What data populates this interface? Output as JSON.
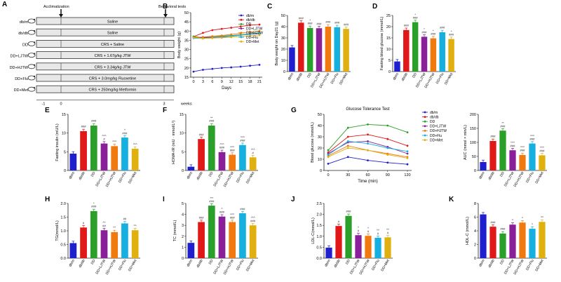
{
  "panel_letters": [
    "A",
    "B",
    "C",
    "D",
    "E",
    "F",
    "G",
    "H",
    "I",
    "J",
    "K"
  ],
  "group_colors": {
    "db/m": "#1f1fd0",
    "db/db": "#e01818",
    "DD": "#2aa02a",
    "DD+LJTW": "#8a1f9a",
    "DD+HJTW": "#f07a10",
    "DD+Flu": "#15b0e0",
    "DD+Met": "#e0b010"
  },
  "panel_a": {
    "timeline_top_labels": [
      "Acclimatization",
      "Behavioral tests"
    ],
    "rows": [
      {
        "group": "db/m",
        "treatment": "Saline"
      },
      {
        "group": "db/db",
        "treatment": "Saline"
      },
      {
        "group": "DD",
        "treatment": "CRS + Saline"
      },
      {
        "group": "DD+LJTW",
        "treatment": "CRS + 1.67g/kg JTW"
      },
      {
        "group": "DD+HJTW",
        "treatment": "CRS + 3.34g/kg JTW"
      },
      {
        "group": "DD+Flu",
        "treatment": "CRS + 3.0mg/kg Fluoxetine"
      },
      {
        "group": "DD+Met",
        "treatment": "CRS + 250mg/kg Metformin"
      }
    ],
    "axis_ticks": [
      "-1",
      "0",
      "3"
    ],
    "axis_unit": "weeks"
  },
  "chart_data": [
    {
      "panel": "B",
      "type": "line",
      "title": "",
      "xlabel": "Days",
      "ylabel": "Body weight (g)",
      "x": [
        0,
        3,
        6,
        9,
        12,
        15,
        18,
        21
      ],
      "xticks": [
        "0",
        "3",
        "6",
        "9",
        "12",
        "15",
        "18",
        "21"
      ],
      "ylim": [
        15,
        50
      ],
      "yticks": [
        "15",
        "20",
        "25",
        "30",
        "35",
        "40",
        "45",
        "50"
      ],
      "series": [
        {
          "name": "db/m",
          "values": [
            18,
            19,
            19.5,
            20,
            20.3,
            20.7,
            21.2,
            21.7
          ]
        },
        {
          "name": "db/db",
          "values": [
            37,
            39,
            40.5,
            41.2,
            41.8,
            42.5,
            43.2,
            43.5
          ]
        },
        {
          "name": "DD",
          "values": [
            37,
            36.5,
            37,
            37.3,
            37.6,
            38,
            38.5,
            39
          ]
        },
        {
          "name": "DD+LJTW",
          "values": [
            36.5,
            36.3,
            36.5,
            36.8,
            37.2,
            37.8,
            38.3,
            38.6
          ]
        },
        {
          "name": "DD+HJTW",
          "values": [
            36.5,
            36.8,
            37.2,
            37.6,
            38.2,
            38.8,
            39.5,
            40
          ]
        },
        {
          "name": "DD+Flu",
          "values": [
            36.2,
            36,
            36.3,
            36.6,
            37.2,
            37.8,
            38.4,
            38.8
          ]
        },
        {
          "name": "DD+Met",
          "values": [
            36.5,
            36,
            36.2,
            36.4,
            36.7,
            37,
            37.5,
            37.8
          ]
        }
      ]
    },
    {
      "panel": "C",
      "type": "bar",
      "ylabel": "Body weight on Day21 (g)",
      "ylim": [
        0,
        50
      ],
      "yticks": [
        "0",
        "10",
        "20",
        "30",
        "40",
        "50"
      ],
      "categories": [
        "db/m",
        "db/db",
        "DD",
        "DD+LJTW",
        "DD+HJTW",
        "DD+Flu",
        "DD+Met"
      ],
      "values": [
        21.5,
        43.5,
        38.8,
        38.6,
        40,
        39.5,
        38
      ],
      "annotations": [
        "",
        "###",
        "*\n###",
        "###",
        "###",
        "###",
        "###"
      ]
    },
    {
      "panel": "D",
      "type": "bar",
      "ylabel": "Fasting blood glucose (mmol/L)",
      "ylim": [
        0,
        25
      ],
      "yticks": [
        "0",
        "5",
        "10",
        "15",
        "20",
        "25"
      ],
      "categories": [
        "db/m",
        "db/db",
        "DD",
        "DD+LJTW",
        "DD+HJTW",
        "DD+Flu",
        "DD+Met"
      ],
      "values": [
        4.5,
        18.5,
        22,
        15.5,
        14.8,
        17.5,
        14.5
      ],
      "annotations": [
        "",
        "###",
        "*\n###",
        "*\n###",
        "*\n###",
        "###",
        "*\n###"
      ]
    },
    {
      "panel": "E",
      "type": "bar",
      "ylabel": "Fasting insulin (mU/L)",
      "ylim": [
        0,
        15
      ],
      "yticks": [
        "0",
        "5",
        "10",
        "15"
      ],
      "categories": [
        "db/m",
        "db/db",
        "DD",
        "DD+LJTW",
        "DD+HJTW",
        "DD+Flu",
        "DD+Met"
      ],
      "values": [
        4.5,
        10.5,
        12,
        7.2,
        6.5,
        8.8,
        5.8
      ],
      "annotations": [
        "",
        "###",
        "###",
        "^^^\n#",
        "^^^",
        "^\n###",
        "^^^"
      ]
    },
    {
      "panel": "F",
      "type": "bar",
      "ylabel": "HOMA-IR (mU · mmol/L²)",
      "ylim": [
        0,
        15
      ],
      "yticks": [
        "0",
        "5",
        "10",
        "15"
      ],
      "categories": [
        "db/m",
        "db/db",
        "DD",
        "DD+LJTW",
        "DD+HJTW",
        "DD+Flu",
        "DD+Met"
      ],
      "values": [
        1,
        8.4,
        12,
        4.9,
        4.2,
        6.8,
        3.5
      ],
      "annotations": [
        "",
        "###",
        "**\n###",
        "^^^\n###",
        "^^^\n###",
        "^^^\n###",
        "^^^\n#"
      ]
    },
    {
      "panel": "G",
      "type": "line",
      "title": "Glucose Tolerance Test",
      "xlabel": "Time  (min)",
      "ylabel": "Blood glucose (mmol/L)",
      "x": [
        0,
        30,
        60,
        90,
        120
      ],
      "xticks": [
        "0",
        "30",
        "60",
        "90",
        "120"
      ],
      "ylim": [
        0,
        50
      ],
      "yticks": [
        "0",
        "10",
        "20",
        "30",
        "40",
        "50"
      ],
      "series": [
        {
          "name": "db/m",
          "values": [
            6,
            12,
            9,
            7,
            5.5
          ]
        },
        {
          "name": "db/db",
          "values": [
            16,
            30,
            32,
            28,
            22
          ]
        },
        {
          "name": "DD",
          "values": [
            18,
            38,
            41,
            40,
            34
          ]
        },
        {
          "name": "DD+LJTW",
          "values": [
            15,
            25,
            26,
            21,
            15
          ]
        },
        {
          "name": "DD+HJTW",
          "values": [
            13,
            22,
            18,
            15,
            12
          ]
        },
        {
          "name": "DD+Flu",
          "values": [
            14,
            26,
            24,
            20,
            17
          ]
        },
        {
          "name": "DD+Met",
          "values": [
            12,
            20,
            18,
            14,
            11
          ]
        }
      ]
    },
    {
      "panel": "G2",
      "type": "bar",
      "ylabel": "AUC (mmol × min/L)",
      "ylim": [
        0,
        200
      ],
      "yticks": [
        "0",
        "50",
        "100",
        "150",
        "200"
      ],
      "categories": [
        "db/m",
        "db/db",
        "DD",
        "DD+LJTW",
        "DD+HJTW",
        "DD+Flu",
        "DD+Met"
      ],
      "values": [
        30,
        105,
        142,
        72,
        55,
        96,
        54
      ],
      "annotations": [
        "",
        "###",
        "**\n###",
        "^^^\n###",
        "^^^\n###",
        "^^^\n###",
        "^^^\n###"
      ]
    },
    {
      "panel": "H",
      "type": "bar",
      "ylabel": "TG(mmol/L)",
      "ylim": [
        0,
        2
      ],
      "yticks": [
        "0.0",
        "0.5",
        "1.0",
        "1.5",
        "2.0"
      ],
      "categories": [
        "db/m",
        "db/db",
        "DD",
        "DD+LJTW",
        "DD+HJTW",
        "DD+Flu",
        "DD+Met"
      ],
      "values": [
        0.55,
        1.12,
        1.72,
        1.02,
        0.95,
        1.27,
        1.02
      ],
      "annotations": [
        "",
        "#",
        "*\n###",
        "^^\n##",
        "^^",
        "##",
        "^^"
      ]
    },
    {
      "panel": "I",
      "type": "bar",
      "ylabel": "TC (mmol/L)",
      "ylim": [
        0,
        5
      ],
      "yticks": [
        "0",
        "1",
        "2",
        "3",
        "4",
        "5"
      ],
      "categories": [
        "db/m",
        "db/db",
        "DD",
        "DD+LJTW",
        "DD+HJTW",
        "DD+Flu",
        "DD+Met"
      ],
      "values": [
        1.4,
        3.3,
        4.8,
        3.8,
        3.3,
        4.1,
        3.0
      ],
      "annotations": [
        "",
        "###",
        "***\n###",
        "^\n###",
        "^^^\n###",
        "###",
        "^^^\n###"
      ]
    },
    {
      "panel": "J",
      "type": "bar",
      "ylabel": "LDL-C(mmol/L)",
      "ylim": [
        0,
        2.5
      ],
      "yticks": [
        "0.0",
        "0.5",
        "1.0",
        "1.5",
        "2.0",
        "2.5"
      ],
      "categories": [
        "db/m",
        "db/db",
        "DD",
        "DD+LJTW",
        "DD+HJTW",
        "DD+Flu",
        "DD+Met"
      ],
      "values": [
        0.48,
        1.47,
        1.93,
        1.05,
        1.02,
        0.93,
        0.95
      ],
      "annotations": [
        "",
        "#",
        "###",
        "^\n#",
        "^\n#",
        "^^\n#",
        "^^\n#"
      ]
    },
    {
      "panel": "K",
      "type": "bar",
      "ylabel": "HDL-C (mmol/L)",
      "ylim": [
        0,
        8
      ],
      "yticks": [
        "0",
        "2",
        "4",
        "6",
        "8"
      ],
      "categories": [
        "db/m",
        "db/db",
        "DD",
        "DD+LJTW",
        "DD+HJTW",
        "DD+Flu",
        "DD+Met"
      ],
      "values": [
        6.4,
        4.6,
        3.6,
        4.9,
        5.2,
        4.3,
        5.3
      ],
      "annotations": [
        "",
        "###",
        "###",
        "^",
        "^",
        "^",
        "^^"
      ]
    }
  ]
}
